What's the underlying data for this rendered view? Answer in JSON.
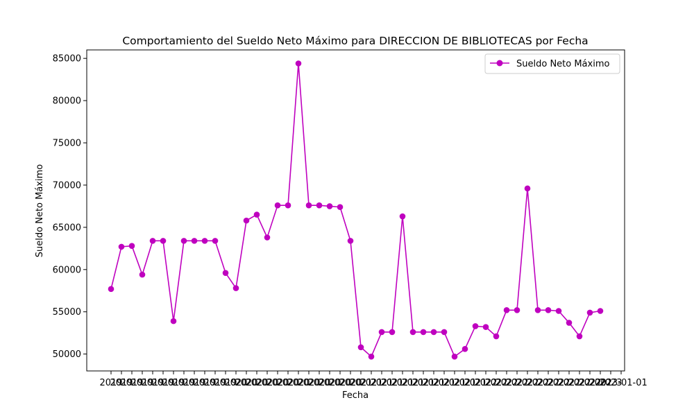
{
  "chart_data": {
    "type": "line",
    "title": "Comportamiento del Sueldo Neto Máximo para DIRECCION DE BIBLIOTECAS por Fecha",
    "xlabel": "Fecha",
    "ylabel": "Sueldo Neto Máximo",
    "ylim": [
      48000,
      86000
    ],
    "yticks": [
      50000,
      55000,
      60000,
      65000,
      70000,
      75000,
      80000,
      85000
    ],
    "x_tick_labels": [
      "2019",
      "2019",
      "2019",
      "2019",
      "2019",
      "2019",
      "2019",
      "2019",
      "2019",
      "2019",
      "2019",
      "2019",
      "2020",
      "2020",
      "2020",
      "2020",
      "2020",
      "2020",
      "2020",
      "2020",
      "2020",
      "2020",
      "2020",
      "2020",
      "2021",
      "2021",
      "2021",
      "2021",
      "2021",
      "2021",
      "2021",
      "2021",
      "2021",
      "2021",
      "2021",
      "2021",
      "2022",
      "2022",
      "2022",
      "2022",
      "2022",
      "2022",
      "2022",
      "2022",
      "2022",
      "2022",
      "2022",
      "2022",
      "2023",
      "2023"
    ],
    "last_tick_label": "2023-01-01",
    "grid": false,
    "legend_position": "top-right",
    "series": [
      {
        "name": "Sueldo Neto Máximo",
        "color": "#bf00bf",
        "marker": "circle",
        "values": [
          57700,
          62700,
          62800,
          59400,
          63400,
          63400,
          53900,
          63400,
          63400,
          63400,
          63400,
          59600,
          57800,
          65800,
          66500,
          63800,
          67600,
          67600,
          84400,
          67600,
          67600,
          67500,
          67400,
          63400,
          50800,
          49700,
          52600,
          52600,
          66300,
          52600,
          52600,
          52600,
          52600,
          49700,
          50600,
          53300,
          53200,
          52100,
          55200,
          55200,
          69600,
          55200,
          55200,
          55100,
          53700,
          52100,
          54900,
          55100
        ]
      }
    ]
  }
}
